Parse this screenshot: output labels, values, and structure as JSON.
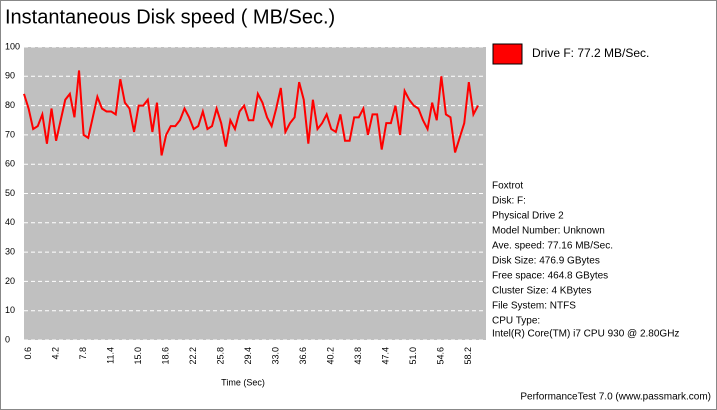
{
  "chart_data": {
    "type": "line",
    "title": "Instantaneous Disk speed ( MB/Sec.)",
    "x_label": "Time (Sec)",
    "categories": [
      null,
      "0.6",
      null,
      null,
      null,
      null,
      null,
      "4.2",
      null,
      null,
      null,
      null,
      null,
      "7.8",
      null,
      null,
      null,
      null,
      null,
      "11.4",
      null,
      null,
      null,
      null,
      null,
      "15.0",
      null,
      null,
      null,
      null,
      null,
      "18.6",
      null,
      null,
      null,
      null,
      null,
      "22.2",
      null,
      null,
      null,
      null,
      null,
      "25.8",
      null,
      null,
      null,
      null,
      null,
      "29.4",
      null,
      null,
      null,
      null,
      null,
      "33.0",
      null,
      null,
      null,
      null,
      null,
      "36.6",
      null,
      null,
      null,
      null,
      null,
      "40.2",
      null,
      null,
      null,
      null,
      null,
      "43.8",
      null,
      null,
      null,
      null,
      null,
      "47.4",
      null,
      null,
      null,
      null,
      null,
      "51.0",
      null,
      null,
      null,
      null,
      null,
      "54.6",
      null,
      null,
      null,
      null,
      null,
      "58.2",
      null,
      null
    ],
    "series": [
      {
        "name": "Drive F: 77.2 MB/Sec.",
        "color": "#ff0000",
        "values": [
          84,
          79,
          72,
          73,
          77,
          67,
          79,
          68,
          75,
          82,
          84,
          76,
          92,
          70,
          69,
          76,
          83,
          79,
          78,
          78,
          77,
          89,
          81,
          79,
          71,
          80,
          80,
          82,
          71,
          81,
          63,
          70,
          73,
          73,
          75,
          79,
          76,
          72,
          73,
          78,
          72,
          73,
          79,
          74,
          66,
          75,
          72,
          78,
          80,
          75,
          75,
          84,
          81,
          76,
          73,
          79,
          86,
          71,
          74,
          76,
          88,
          82,
          67,
          82,
          72,
          74,
          77,
          72,
          71,
          77,
          68,
          68,
          76,
          76,
          79,
          70,
          77,
          77,
          65,
          74,
          74,
          80,
          70,
          85,
          82,
          80,
          79,
          75,
          72,
          81,
          75,
          90,
          77,
          76,
          64,
          69,
          74,
          88,
          77,
          80
        ]
      }
    ],
    "ylim": [
      0,
      100
    ],
    "yticks": [
      0,
      10,
      20,
      30,
      40,
      50,
      60,
      70,
      80,
      90,
      100
    ],
    "grid": true,
    "info": [
      "Foxtrot",
      "Disk: F:",
      "Physical Drive 2",
      "Model Number: Unknown",
      "Ave. speed: 77.16 MB/Sec.",
      "Disk Size: 476.9 GBytes",
      "Free space: 464.8 GBytes",
      "Cluster Size: 4 KBytes",
      "File System: NTFS",
      "CPU Type:",
      "Intel(R) Core(TM) i7 CPU 930 @ 2.80GHz"
    ],
    "footer": "PerformanceTest 7.0 (www.passmark.com)"
  }
}
